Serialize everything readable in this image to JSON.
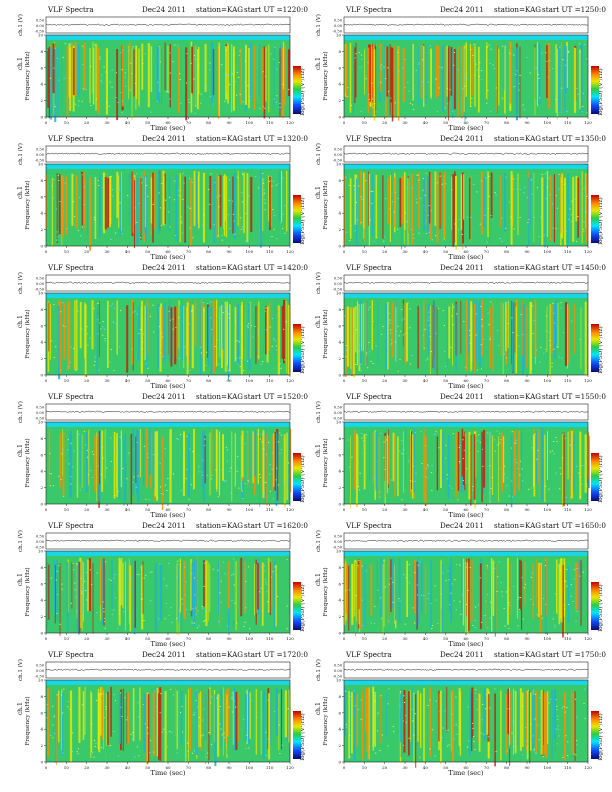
{
  "common": {
    "title_left": "VLF Spectra",
    "date": "Dec24 2011",
    "station": "station=KAG",
    "ut_prefix": "start  UT  =",
    "ch_label": "ch.1 (V)",
    "freq_label_top": "ch.1",
    "freq_label": "Frequency  (kHz)",
    "xlabel": "Time  (sec)",
    "colorbar_label": "log(PSD) (V²/Hz)",
    "ch_ticks": [
      "0.50",
      "0.00",
      "-0.50"
    ]
  },
  "chart_data": [
    {
      "type": "heatmap",
      "start_ut": "1220:0",
      "x_range": [
        0,
        120
      ],
      "y_range": [
        0,
        10
      ],
      "x_ticks": [
        0,
        10,
        20,
        30,
        40,
        50,
        60,
        70,
        80,
        90,
        100,
        110,
        120
      ],
      "y_ticks": [
        0,
        2,
        4,
        6,
        8,
        10
      ]
    },
    {
      "type": "heatmap",
      "start_ut": "1250:0",
      "x_range": [
        0,
        120
      ],
      "y_range": [
        0,
        10
      ],
      "x_ticks": [
        0,
        10,
        20,
        30,
        40,
        50,
        60,
        70,
        80,
        90,
        100,
        110,
        120
      ],
      "y_ticks": [
        0,
        2,
        4,
        6,
        8,
        10
      ]
    },
    {
      "type": "heatmap",
      "start_ut": "1320:0",
      "x_range": [
        0,
        120
      ],
      "y_range": [
        0,
        10
      ],
      "x_ticks": [
        0,
        10,
        20,
        30,
        40,
        50,
        60,
        70,
        80,
        90,
        100,
        110,
        120
      ],
      "y_ticks": [
        0,
        2,
        4,
        6,
        8,
        10
      ]
    },
    {
      "type": "heatmap",
      "start_ut": "1350:0",
      "x_range": [
        0,
        120
      ],
      "y_range": [
        0,
        10
      ],
      "x_ticks": [
        0,
        10,
        20,
        30,
        40,
        50,
        60,
        70,
        80,
        90,
        100,
        110,
        120
      ],
      "y_ticks": [
        0,
        2,
        4,
        6,
        8,
        10
      ]
    },
    {
      "type": "heatmap",
      "start_ut": "1420:0",
      "x_range": [
        0,
        120
      ],
      "y_range": [
        0,
        10
      ],
      "x_ticks": [
        0,
        10,
        20,
        30,
        40,
        50,
        60,
        70,
        80,
        90,
        100,
        110,
        120
      ],
      "y_ticks": [
        0,
        2,
        4,
        6,
        8,
        10
      ]
    },
    {
      "type": "heatmap",
      "start_ut": "1450:0",
      "x_range": [
        0,
        120
      ],
      "y_range": [
        0,
        10
      ],
      "x_ticks": [
        0,
        10,
        20,
        30,
        40,
        50,
        60,
        70,
        80,
        90,
        100,
        110,
        120
      ],
      "y_ticks": [
        0,
        2,
        4,
        6,
        8,
        10
      ]
    },
    {
      "type": "heatmap",
      "start_ut": "1520:0",
      "x_range": [
        0,
        120
      ],
      "y_range": [
        0,
        10
      ],
      "x_ticks": [
        0,
        10,
        20,
        30,
        40,
        50,
        60,
        70,
        80,
        90,
        100,
        110,
        120
      ],
      "y_ticks": [
        0,
        2,
        4,
        6,
        8,
        10
      ]
    },
    {
      "type": "heatmap",
      "start_ut": "1550:0",
      "x_range": [
        0,
        120
      ],
      "y_range": [
        0,
        10
      ],
      "x_ticks": [
        0,
        10,
        20,
        30,
        40,
        50,
        60,
        70,
        80,
        90,
        100,
        110,
        120
      ],
      "y_ticks": [
        0,
        2,
        4,
        6,
        8,
        10
      ]
    },
    {
      "type": "heatmap",
      "start_ut": "1620:0",
      "x_range": [
        0,
        120
      ],
      "y_range": [
        0,
        10
      ],
      "x_ticks": [
        0,
        10,
        20,
        30,
        40,
        50,
        60,
        70,
        80,
        90,
        100,
        110,
        120
      ],
      "y_ticks": [
        0,
        2,
        4,
        6,
        8,
        10
      ]
    },
    {
      "type": "heatmap",
      "start_ut": "1650:0",
      "x_range": [
        0,
        120
      ],
      "y_range": [
        0,
        10
      ],
      "x_ticks": [
        0,
        10,
        20,
        30,
        40,
        50,
        60,
        70,
        80,
        90,
        100,
        110,
        120
      ],
      "y_ticks": [
        0,
        2,
        4,
        6,
        8,
        10
      ]
    },
    {
      "type": "heatmap",
      "start_ut": "1720:0",
      "x_range": [
        0,
        120
      ],
      "y_range": [
        0,
        10
      ],
      "x_ticks": [
        0,
        10,
        20,
        30,
        40,
        50,
        60,
        70,
        80,
        90,
        100,
        110,
        120
      ],
      "y_ticks": [
        0,
        2,
        4,
        6,
        8,
        10
      ]
    },
    {
      "type": "heatmap",
      "start_ut": "1750:0",
      "x_range": [
        0,
        120
      ],
      "y_range": [
        0,
        10
      ],
      "x_ticks": [
        0,
        10,
        20,
        30,
        40,
        50,
        60,
        70,
        80,
        90,
        100,
        110,
        120
      ],
      "y_ticks": [
        0,
        2,
        4,
        6,
        8,
        10
      ]
    }
  ]
}
